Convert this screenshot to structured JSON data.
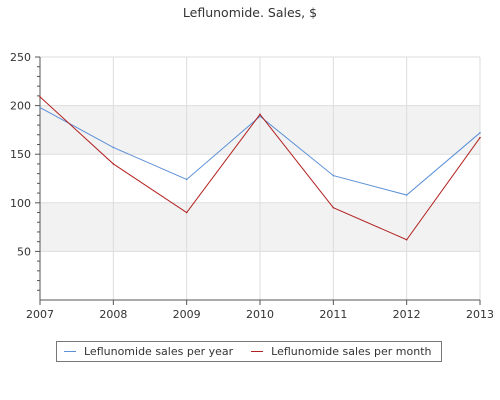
{
  "chart_data": {
    "type": "line",
    "title": "Leflunomide. Sales, $",
    "x": [
      "2007",
      "2008",
      "2009",
      "2010",
      "2011",
      "2012",
      "2013"
    ],
    "ylim": [
      0,
      250
    ],
    "yticks": [
      50,
      100,
      150,
      200,
      250
    ],
    "grid": true,
    "legend_position": "bottom",
    "series": [
      {
        "name": "Leflunomide sales per year",
        "color": "#5b8fd6",
        "values": [
          198,
          157,
          124,
          189,
          128,
          108,
          172
        ]
      },
      {
        "name": "Leflunomide sales per month",
        "color": "#b22222",
        "values": [
          209,
          140,
          90,
          191,
          95,
          62,
          167
        ]
      }
    ]
  }
}
